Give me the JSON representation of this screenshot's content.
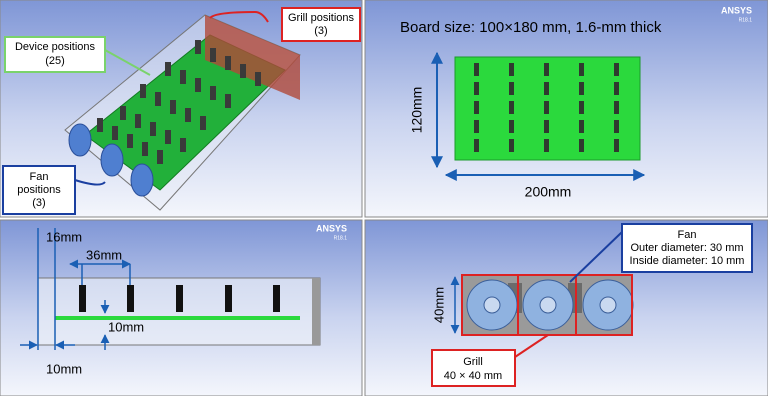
{
  "panels": {
    "iso_view": {
      "device_label": [
        "Device positions",
        "(25)"
      ],
      "grill_label": [
        "Grill positions",
        "(3)"
      ],
      "fan_label": [
        "Fan",
        "positions",
        "(3)"
      ]
    },
    "top_view": {
      "logo": "ANSYS",
      "version": "R18.1",
      "title": "Board size: 100×180 mm, 1.6-mm thick",
      "height_dim": "120mm",
      "width_dim": "200mm"
    },
    "side_view": {
      "logo": "ANSYS",
      "version": "R18.1",
      "edge_dim": "16mm",
      "pitch_dim": "36mm",
      "board_dim": "10mm",
      "gap_dim": "10mm"
    },
    "front_view": {
      "fan_label": [
        "Fan",
        "Outer diameter: 30 mm",
        "Inside diameter: 10 mm"
      ],
      "height_dim": "40mm",
      "grill_label": [
        "Grill",
        "40 × 40 mm"
      ]
    }
  }
}
